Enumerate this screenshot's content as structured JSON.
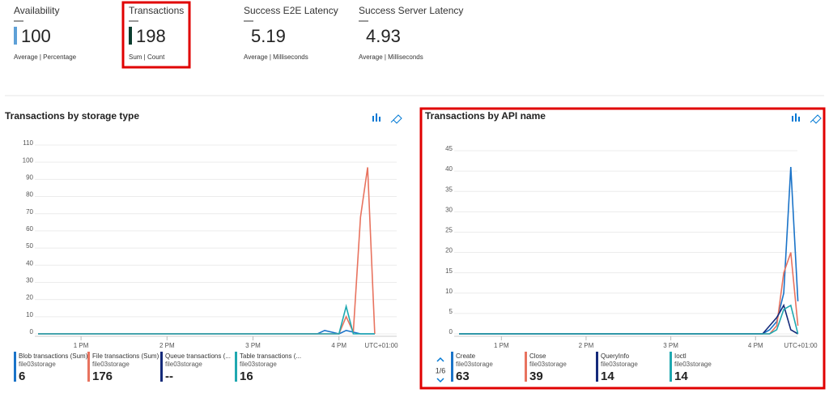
{
  "tiles": [
    {
      "title": "Availability",
      "value": "100",
      "unit": "Average | Percentage",
      "color": "#5ea0d7"
    },
    {
      "title": "Transactions",
      "value": "198",
      "unit": "Sum | Count",
      "color": "#0b3d2e"
    },
    {
      "title": "Success E2E Latency",
      "value": "5.19",
      "unit": "Average | Milliseconds"
    },
    {
      "title": "Success Server Latency",
      "value": "4.93",
      "unit": "Average | Milliseconds"
    }
  ],
  "chart_data": [
    {
      "type": "line",
      "title": "Transactions by storage type",
      "timezone": "UTC+01:00",
      "categories": [
        null,
        null,
        null,
        null,
        null,
        null,
        "1 PM",
        null,
        null,
        null,
        null,
        null,
        null,
        null,
        null,
        null,
        null,
        null,
        "2 PM",
        null,
        null,
        null,
        null,
        null,
        null,
        null,
        null,
        null,
        null,
        null,
        "3 PM",
        null,
        null,
        null,
        null,
        null,
        null,
        null,
        null,
        null,
        null,
        null,
        "4 PM",
        null,
        null,
        null,
        null,
        null
      ],
      "ylim": [
        0,
        110
      ],
      "yticks": [
        0,
        10,
        20,
        30,
        40,
        50,
        60,
        70,
        80,
        90,
        100,
        110
      ],
      "grid": true,
      "series": [
        {
          "name": "Blob transactions (Sum)",
          "resource": "file03storage",
          "color": "#1a73c8",
          "total": 6,
          "values": [
            0,
            0,
            0,
            0,
            0,
            0,
            0,
            0,
            0,
            0,
            0,
            0,
            0,
            0,
            0,
            0,
            0,
            0,
            0,
            0,
            0,
            0,
            0,
            0,
            0,
            0,
            0,
            0,
            0,
            0,
            0,
            0,
            0,
            0,
            0,
            0,
            0,
            0,
            0,
            0,
            2,
            1,
            0,
            2,
            1,
            0,
            0,
            0
          ]
        },
        {
          "name": "File transactions (Sum)",
          "resource": "file03storage",
          "color": "#e8735f",
          "total": 176,
          "values": [
            0,
            0,
            0,
            0,
            0,
            0,
            0,
            0,
            0,
            0,
            0,
            0,
            0,
            0,
            0,
            0,
            0,
            0,
            0,
            0,
            0,
            0,
            0,
            0,
            0,
            0,
            0,
            0,
            0,
            0,
            0,
            0,
            0,
            0,
            0,
            0,
            0,
            0,
            0,
            0,
            0,
            0,
            0,
            10,
            1,
            68,
            97,
            0
          ]
        },
        {
          "name": "Queue transactions (...",
          "resource": "file03storage",
          "color": "#142a7a",
          "total_label": "--",
          "values": [
            null,
            null,
            null,
            null,
            null,
            null,
            null,
            null,
            null,
            null,
            null,
            null,
            null,
            null,
            null,
            null,
            null,
            null,
            null,
            null,
            null,
            null,
            null,
            null,
            null,
            null,
            null,
            null,
            null,
            null,
            null,
            null,
            null,
            null,
            null,
            null,
            null,
            null,
            null,
            null,
            null,
            null,
            null,
            null,
            null,
            null,
            null,
            null
          ]
        },
        {
          "name": "Table transactions (...",
          "resource": "file03storage",
          "color": "#1fa8b0",
          "total": 16,
          "values": [
            0,
            0,
            0,
            0,
            0,
            0,
            0,
            0,
            0,
            0,
            0,
            0,
            0,
            0,
            0,
            0,
            0,
            0,
            0,
            0,
            0,
            0,
            0,
            0,
            0,
            0,
            0,
            0,
            0,
            0,
            0,
            0,
            0,
            0,
            0,
            0,
            0,
            0,
            0,
            0,
            0,
            0,
            0,
            16,
            0,
            0,
            0,
            0
          ]
        }
      ]
    },
    {
      "type": "line",
      "title": "Transactions by API name",
      "timezone": "UTC+01:00",
      "pager": "1/6",
      "categories": [
        null,
        null,
        null,
        null,
        null,
        null,
        "1 PM",
        null,
        null,
        null,
        null,
        null,
        null,
        null,
        null,
        null,
        null,
        null,
        "2 PM",
        null,
        null,
        null,
        null,
        null,
        null,
        null,
        null,
        null,
        null,
        null,
        "3 PM",
        null,
        null,
        null,
        null,
        null,
        null,
        null,
        null,
        null,
        null,
        null,
        "4 PM",
        null,
        null,
        null,
        null,
        null,
        null
      ],
      "ylim": [
        0,
        45
      ],
      "yticks": [
        0,
        5,
        10,
        15,
        20,
        25,
        30,
        35,
        40,
        45
      ],
      "grid": true,
      "series": [
        {
          "name": "Create",
          "resource": "file03storage",
          "color": "#1a73c8",
          "total": 63,
          "values": [
            0,
            0,
            0,
            0,
            0,
            0,
            0,
            0,
            0,
            0,
            0,
            0,
            0,
            0,
            0,
            0,
            0,
            0,
            0,
            0,
            0,
            0,
            0,
            0,
            0,
            0,
            0,
            0,
            0,
            0,
            0,
            0,
            0,
            0,
            0,
            0,
            0,
            0,
            0,
            0,
            0,
            0,
            0,
            0,
            1,
            3,
            10,
            41,
            8
          ]
        },
        {
          "name": "Close",
          "resource": "file03storage",
          "color": "#e8735f",
          "total": 39,
          "values": [
            0,
            0,
            0,
            0,
            0,
            0,
            0,
            0,
            0,
            0,
            0,
            0,
            0,
            0,
            0,
            0,
            0,
            0,
            0,
            0,
            0,
            0,
            0,
            0,
            0,
            0,
            0,
            0,
            0,
            0,
            0,
            0,
            0,
            0,
            0,
            0,
            0,
            0,
            0,
            0,
            0,
            0,
            0,
            0,
            0,
            2,
            15,
            20,
            2
          ]
        },
        {
          "name": "QueryInfo",
          "resource": "file03storage",
          "color": "#142a7a",
          "total": 14,
          "values": [
            0,
            0,
            0,
            0,
            0,
            0,
            0,
            0,
            0,
            0,
            0,
            0,
            0,
            0,
            0,
            0,
            0,
            0,
            0,
            0,
            0,
            0,
            0,
            0,
            0,
            0,
            0,
            0,
            0,
            0,
            0,
            0,
            0,
            0,
            0,
            0,
            0,
            0,
            0,
            0,
            0,
            0,
            0,
            0,
            2,
            4,
            7,
            1,
            0
          ]
        },
        {
          "name": "Ioctl",
          "resource": "file03storage",
          "color": "#1fa8b0",
          "total": 14,
          "values": [
            0,
            0,
            0,
            0,
            0,
            0,
            0,
            0,
            0,
            0,
            0,
            0,
            0,
            0,
            0,
            0,
            0,
            0,
            0,
            0,
            0,
            0,
            0,
            0,
            0,
            0,
            0,
            0,
            0,
            0,
            0,
            0,
            0,
            0,
            0,
            0,
            0,
            0,
            0,
            0,
            0,
            0,
            0,
            0,
            0,
            1,
            6,
            7,
            0
          ]
        }
      ]
    }
  ]
}
